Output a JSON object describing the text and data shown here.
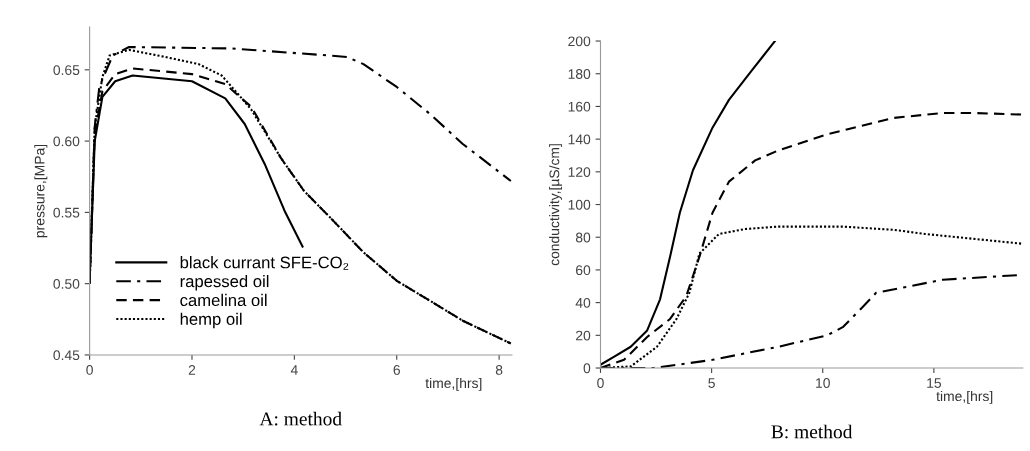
{
  "chart_data": [
    {
      "type": "line",
      "title": "A: method",
      "xlabel": "time,[hrs]",
      "ylabel": "pressure,[MPa]",
      "xlim": [
        0,
        8.25
      ],
      "xticks": [
        0,
        2,
        4,
        6,
        8
      ],
      "ylim": [
        0.45,
        0.68
      ],
      "yticks": [
        {
          "value": 0.45,
          "label": "0.45"
        },
        {
          "value": 0.5,
          "label": "0.50"
        },
        {
          "value": 0.55,
          "label": "0.55"
        },
        {
          "value": 0.6,
          "label": "0.60"
        },
        {
          "value": 0.65,
          "label": "0.65"
        }
      ],
      "grid": false,
      "legend": "bottom left",
      "marker": "none",
      "series": [
        {
          "name": "black currant SFE-CO₂",
          "color": "#000000",
          "line_style": "solid",
          "x": [
            0,
            0.1,
            0.25,
            0.5,
            0.84,
            2.0,
            2.65,
            3.03,
            3.42,
            3.81,
            4.16
          ],
          "values": [
            0.502,
            0.6,
            0.631,
            0.642,
            0.646,
            0.642,
            0.63,
            0.612,
            0.584,
            0.551,
            0.526
          ]
        },
        {
          "name": "rapessed oil",
          "color": "#000000",
          "line_style": "dashdot",
          "x": [
            0,
            0.1,
            0.19,
            0.45,
            0.77,
            2.77,
            4.7,
            5.03,
            5.35,
            6.0,
            6.65,
            7.29,
            8.23
          ],
          "values": [
            0.5,
            0.61,
            0.638,
            0.66,
            0.666,
            0.665,
            0.66,
            0.659,
            0.654,
            0.638,
            0.619,
            0.598,
            0.572
          ]
        },
        {
          "name": "camelina oil",
          "color": "#000000",
          "line_style": "dashed",
          "x": [
            0,
            0.1,
            0.25,
            0.5,
            0.84,
            2.0,
            2.65,
            3.16,
            3.74,
            4.19,
            4.71,
            5.35,
            6.0,
            6.65,
            7.29,
            8.23
          ],
          "values": [
            0.5,
            0.605,
            0.635,
            0.647,
            0.651,
            0.647,
            0.64,
            0.624,
            0.588,
            0.565,
            0.546,
            0.522,
            0.502,
            0.488,
            0.474,
            0.458
          ]
        },
        {
          "name": "hemp oil",
          "color": "#000000",
          "line_style": "dotted",
          "x": [
            0,
            0.1,
            0.25,
            0.39,
            0.77,
            1.48,
            2.13,
            2.58,
            2.9,
            3.16,
            3.74,
            4.19,
            4.71,
            5.35,
            6.0,
            6.65,
            7.29,
            8.23
          ],
          "values": [
            0.5,
            0.61,
            0.645,
            0.66,
            0.664,
            0.659,
            0.654,
            0.646,
            0.633,
            0.622,
            0.588,
            0.565,
            0.546,
            0.522,
            0.502,
            0.488,
            0.474,
            0.458
          ]
        }
      ]
    },
    {
      "type": "line",
      "title": "B: method",
      "xlabel": "time,[hrs]",
      "ylabel": "conductivity,[µS/cm]",
      "xlim": [
        0,
        19
      ],
      "xticks": [
        0,
        5,
        10,
        15
      ],
      "ylim": [
        0,
        200
      ],
      "yticks": [
        0,
        20,
        40,
        60,
        80,
        100,
        120,
        140,
        160,
        180,
        200
      ],
      "grid": false,
      "marker": "none",
      "series": [
        {
          "color": "#000000",
          "line_style": "solid",
          "x": [
            0,
            0.62,
            1.36,
            2.1,
            2.68,
            3.13,
            3.57,
            4.16,
            5.04,
            5.78,
            6.81,
            7.85
          ],
          "values": [
            2,
            7,
            13,
            23,
            42,
            68,
            95,
            121,
            147,
            164,
            182,
            200
          ]
        },
        {
          "color": "#000000",
          "line_style": "dashed",
          "x": [
            0,
            1.06,
            2.1,
            3.13,
            3.86,
            4.45,
            5.04,
            5.78,
            6.96,
            7.99,
            10.2,
            13.2,
            15.4,
            16.8,
            19
          ],
          "values": [
            0,
            5,
            19,
            30,
            44,
            68,
            95,
            114,
            127,
            133,
            143,
            153,
            156,
            156,
            155
          ]
        },
        {
          "color": "#000000",
          "line_style": "dotted",
          "x": [
            0,
            1.36,
            2.54,
            3.42,
            4.0,
            4.45,
            5.33,
            6.5,
            8,
            10.9,
            13.2,
            14.6,
            16.8,
            19
          ],
          "values": [
            0,
            1,
            13,
            30,
            46,
            70,
            82,
            85,
            86.5,
            86.5,
            84.5,
            82,
            79,
            76
          ]
        },
        {
          "color": "#000000",
          "line_style": "dashdot",
          "x": [
            0,
            2.4,
            5.04,
            8,
            10.2,
            10.9,
            11.7,
            12.4,
            13.9,
            15.4,
            19
          ],
          "values": [
            0,
            0,
            5,
            13,
            20,
            25,
            36,
            46,
            50,
            54,
            57
          ]
        }
      ]
    }
  ]
}
